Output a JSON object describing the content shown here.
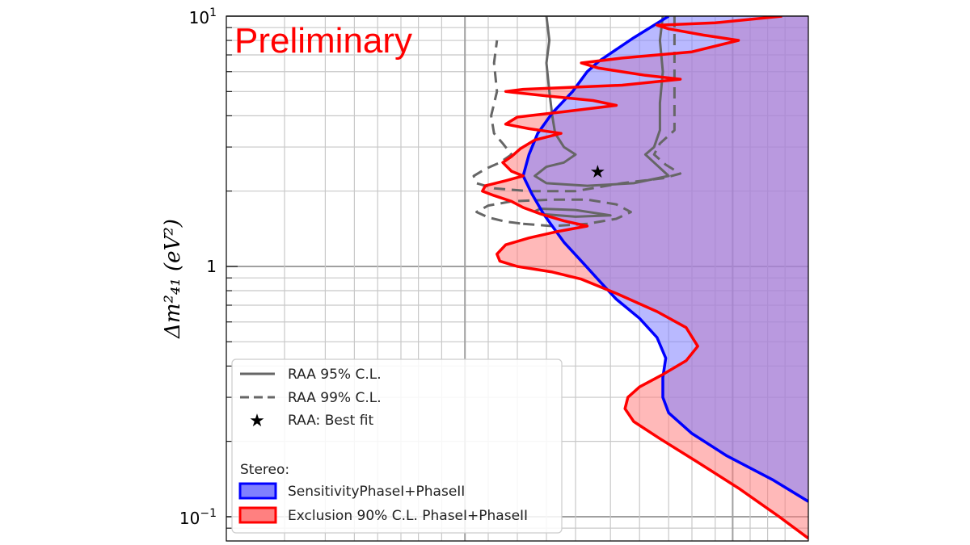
{
  "chart_data": {
    "type": "area",
    "title": "",
    "annotation": "Preliminary",
    "xlabel": "",
    "ylabel": "Δm²₄₁ (eV²)",
    "yscale": "log",
    "ylim": [
      0.08,
      10
    ],
    "xlim": [
      0,
      1
    ],
    "y_tick_labels": [
      {
        "value": 10,
        "base": "10",
        "exp": "1"
      },
      {
        "value": 1,
        "base": "1",
        "exp": ""
      },
      {
        "value": 0.1,
        "base": "10",
        "exp": "−1"
      }
    ],
    "legend": {
      "placement": "lower-left",
      "entries": [
        {
          "label": "RAA 95% C.L.",
          "style": "solid-line",
          "color": "#666666"
        },
        {
          "label": "RAA 99% C.L.",
          "style": "dashed-line",
          "color": "#666666"
        },
        {
          "label": "RAA: Best fit",
          "style": "star",
          "color": "#000000"
        }
      ],
      "group_title": "Stereo:",
      "group_entries": [
        {
          "label": "SensitivityPhaseI+PhaseII",
          "fill": "#8080ff",
          "edge": "#0000ff"
        },
        {
          "label": "Exclusion 90% C.L. PhaseI+PhaseII",
          "fill": "#ff8080",
          "edge": "#ff0000"
        }
      ]
    },
    "series": [
      {
        "name": "SensitivityPhaseI+PhaseII",
        "color": "#0000ff",
        "fill": "#8080ff",
        "points": [
          [
            0.76,
            10
          ],
          [
            0.7,
            8.2
          ],
          [
            0.64,
            6.6
          ],
          [
            0.62,
            6
          ],
          [
            0.595,
            5
          ],
          [
            0.56,
            4.1
          ],
          [
            0.535,
            3.4
          ],
          [
            0.52,
            2.8
          ],
          [
            0.51,
            2.3
          ],
          [
            0.525,
            1.95
          ],
          [
            0.545,
            1.62
          ],
          [
            0.56,
            1.45
          ],
          [
            0.58,
            1.25
          ],
          [
            0.615,
            1.02
          ],
          [
            0.64,
            0.88
          ],
          [
            0.67,
            0.74
          ],
          [
            0.71,
            0.62
          ],
          [
            0.74,
            0.52
          ],
          [
            0.755,
            0.43
          ],
          [
            0.75,
            0.36
          ],
          [
            0.75,
            0.3
          ],
          [
            0.76,
            0.26
          ],
          [
            0.8,
            0.215
          ],
          [
            0.86,
            0.175
          ],
          [
            0.94,
            0.14
          ],
          [
            1.0,
            0.115
          ]
        ]
      },
      {
        "name": "Exclusion 90% C.L. PhaseI+PhaseII",
        "color": "#ff0000",
        "fill": "#ff8080",
        "points": [
          [
            0.955,
            10
          ],
          [
            0.84,
            9.4
          ],
          [
            0.74,
            9.2
          ],
          [
            0.76,
            8.9
          ],
          [
            0.82,
            8.4
          ],
          [
            0.88,
            8.0
          ],
          [
            0.8,
            7.2
          ],
          [
            0.68,
            6.8
          ],
          [
            0.61,
            6.5
          ],
          [
            0.64,
            6.2
          ],
          [
            0.72,
            5.8
          ],
          [
            0.78,
            5.6
          ],
          [
            0.68,
            5.3
          ],
          [
            0.51,
            5.1
          ],
          [
            0.48,
            5.0
          ],
          [
            0.55,
            4.8
          ],
          [
            0.63,
            4.6
          ],
          [
            0.67,
            4.4
          ],
          [
            0.58,
            4.15
          ],
          [
            0.5,
            3.95
          ],
          [
            0.48,
            3.7
          ],
          [
            0.52,
            3.55
          ],
          [
            0.575,
            3.4
          ],
          [
            0.53,
            3.2
          ],
          [
            0.505,
            2.95
          ],
          [
            0.49,
            2.75
          ],
          [
            0.475,
            2.6
          ],
          [
            0.49,
            2.4
          ],
          [
            0.51,
            2.3
          ],
          [
            0.48,
            2.2
          ],
          [
            0.445,
            2.1
          ],
          [
            0.44,
            2.0
          ],
          [
            0.46,
            1.92
          ],
          [
            0.49,
            1.82
          ],
          [
            0.51,
            1.72
          ],
          [
            0.54,
            1.62
          ],
          [
            0.58,
            1.52
          ],
          [
            0.62,
            1.45
          ],
          [
            0.57,
            1.38
          ],
          [
            0.52,
            1.3
          ],
          [
            0.48,
            1.22
          ],
          [
            0.465,
            1.12
          ],
          [
            0.47,
            1.05
          ],
          [
            0.5,
            1.0
          ],
          [
            0.56,
            0.95
          ],
          [
            0.61,
            0.89
          ],
          [
            0.67,
            0.78
          ],
          [
            0.74,
            0.66
          ],
          [
            0.79,
            0.57
          ],
          [
            0.81,
            0.48
          ],
          [
            0.79,
            0.42
          ],
          [
            0.75,
            0.37
          ],
          [
            0.71,
            0.33
          ],
          [
            0.69,
            0.3
          ],
          [
            0.685,
            0.27
          ],
          [
            0.7,
            0.24
          ],
          [
            0.745,
            0.205
          ],
          [
            0.81,
            0.165
          ],
          [
            0.88,
            0.13
          ],
          [
            0.95,
            0.1
          ],
          [
            1.0,
            0.082
          ]
        ]
      },
      {
        "name": "RAA 95% C.L.",
        "style": "solid",
        "color": "#666666",
        "segments": [
          [
            [
              0.55,
              10
            ],
            [
              0.555,
              8
            ],
            [
              0.55,
              6.5
            ],
            [
              0.555,
              5
            ],
            [
              0.56,
              4
            ],
            [
              0.565,
              3.4
            ],
            [
              0.58,
              3.0
            ],
            [
              0.6,
              2.8
            ],
            [
              0.58,
              2.6
            ],
            [
              0.55,
              2.5
            ],
            [
              0.53,
              2.3
            ],
            [
              0.55,
              2.15
            ],
            [
              0.62,
              2.1
            ],
            [
              0.7,
              2.15
            ],
            [
              0.76,
              2.3
            ],
            [
              0.735,
              2.6
            ],
            [
              0.72,
              2.8
            ],
            [
              0.735,
              3.0
            ],
            [
              0.745,
              3.5
            ],
            [
              0.745,
              4.5
            ],
            [
              0.75,
              6
            ],
            [
              0.745,
              8
            ],
            [
              0.75,
              10
            ]
          ],
          [
            [
              0.54,
              1.62
            ],
            [
              0.6,
              1.58
            ],
            [
              0.66,
              1.6
            ],
            [
              0.6,
              1.68
            ],
            [
              0.54,
              1.7
            ],
            [
              0.53,
              1.66
            ],
            [
              0.54,
              1.62
            ]
          ]
        ]
      },
      {
        "name": "RAA 99% C.L.",
        "style": "dashed",
        "color": "#666666",
        "segments": [
          [
            [
              0.77,
              10
            ],
            [
              0.77,
              8
            ],
            [
              0.77,
              6
            ],
            [
              0.77,
              5
            ],
            [
              0.77,
              4
            ],
            [
              0.77,
              3.5
            ],
            [
              0.745,
              3.1
            ],
            [
              0.735,
              2.8
            ],
            [
              0.755,
              2.55
            ],
            [
              0.78,
              2.35
            ],
            [
              0.75,
              2.25
            ],
            [
              0.68,
              2.15
            ],
            [
              0.6,
              2.0
            ],
            [
              0.52,
              2.0
            ],
            [
              0.46,
              2.05
            ],
            [
              0.43,
              2.15
            ],
            [
              0.425,
              2.3
            ],
            [
              0.445,
              2.45
            ],
            [
              0.47,
              2.6
            ],
            [
              0.49,
              2.8
            ],
            [
              0.475,
              3.1
            ],
            [
              0.46,
              3.4
            ],
            [
              0.455,
              4.0
            ],
            [
              0.465,
              5
            ],
            [
              0.46,
              6.5
            ],
            [
              0.465,
              8
            ]
          ],
          [
            [
              0.51,
              1.48
            ],
            [
              0.56,
              1.45
            ],
            [
              0.62,
              1.48
            ],
            [
              0.67,
              1.55
            ],
            [
              0.695,
              1.65
            ],
            [
              0.67,
              1.77
            ],
            [
              0.62,
              1.85
            ],
            [
              0.56,
              1.85
            ],
            [
              0.49,
              1.82
            ],
            [
              0.45,
              1.75
            ],
            [
              0.43,
              1.65
            ],
            [
              0.45,
              1.57
            ],
            [
              0.48,
              1.51
            ],
            [
              0.51,
              1.48
            ]
          ]
        ]
      }
    ],
    "best_fit": {
      "x": 0.638,
      "y": 2.4,
      "marker": "star"
    }
  }
}
